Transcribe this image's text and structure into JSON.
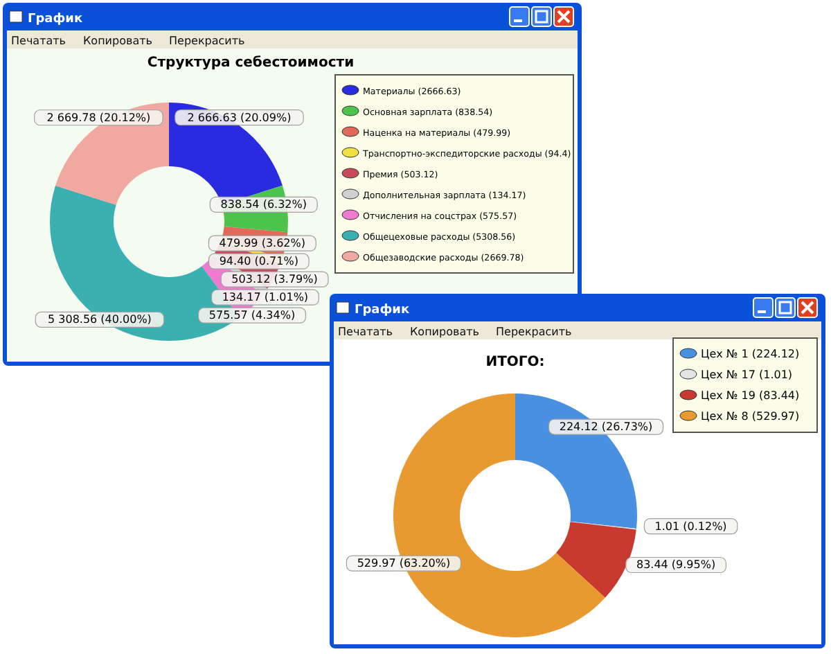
{
  "chart_data": [
    {
      "type": "donut",
      "title": "Структура себестоимости",
      "annotations": [
        "График",
        "Печатать",
        "Копировать",
        "Перекрасить"
      ],
      "legend": "top right",
      "categories": [
        "Материалы (2666.63)",
        "Основная зарплата (838.54)",
        "Наценка на материалы (479.99)",
        "Транспортно-экспедиторские расходы (94.4)",
        "Премия (503.12)",
        "Дополнительная зарплата (134.17)",
        "Отчисления на соцстрах (575.57)",
        "Общецеховые расходы (5308.56)",
        "Общезаводские расходы (2669.78)"
      ],
      "values": [
        2666.63,
        838.54,
        479.99,
        94.4,
        503.12,
        134.17,
        575.57,
        5308.56,
        2669.78
      ],
      "colors": [
        "#2a2ae0",
        "#4cc44c",
        "#e06a5a",
        "#f0e040",
        "#c84a5a",
        "#d0d0d0",
        "#f07ad0",
        "#3ab0b0",
        "#f0a8a0"
      ],
      "value_labels": [
        "2 666.63 (20.09%)",
        "838.54 (6.32%)",
        "479.99 (3.62%)",
        "94.40 (0.71%)",
        "503.12 (3.79%)",
        "134.17 (1.01%)",
        "575.57 (4.34%)",
        "5 308.56 (40.00%)",
        "2 669.78 (20.12%)"
      ]
    },
    {
      "type": "donut",
      "title": "ИТОГО:",
      "annotations": [
        "График",
        "Печатать",
        "Копировать",
        "Перекрасить"
      ],
      "legend": "top right",
      "categories": [
        "Цех № 1 (224.12)",
        "Цех № 17 (1.01)",
        "Цех № 19 (83.44)",
        "Цех № 8 (529.97)"
      ],
      "values": [
        224.12,
        1.01,
        83.44,
        529.97
      ],
      "colors": [
        "#4a90e0",
        "#e4e4e4",
        "#c83a30",
        "#e89a30"
      ],
      "value_labels": [
        "224.12 (26.73%)",
        "1.01 (0.12%)",
        "83.44 (9.95%)",
        "529.97 (63.20%)"
      ]
    }
  ]
}
